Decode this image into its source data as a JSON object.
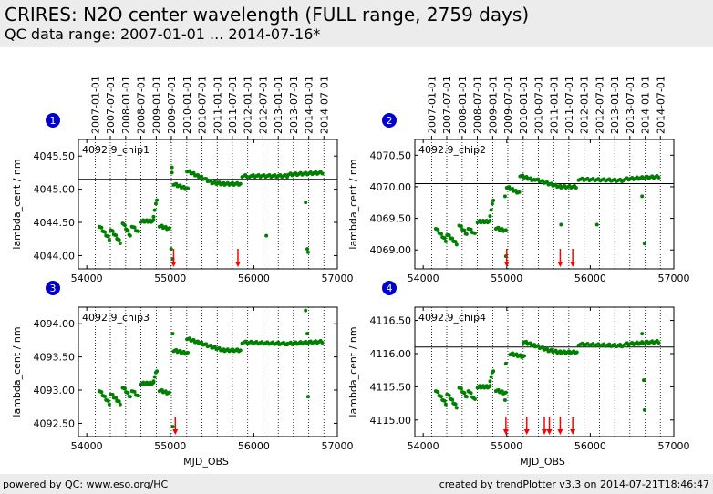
{
  "header": {
    "title": "CRIRES: N2O center wavelength (FULL range, 2759 days)",
    "subtitle": "QC data range: 2007-01-01 ... 2014-07-16*"
  },
  "footer": {
    "left": "powered by QC: www.eso.org/HC",
    "right": "created by trendPlotter v3.3 on 2014-07-21T18:46:47"
  },
  "colors": {
    "data": "#008000",
    "marker": "#ff0000",
    "badge": "#0000cc",
    "reference": "#000000"
  },
  "chart_data": [
    {
      "type": "scatter",
      "badge": "1",
      "label": "4092.9_chip1",
      "xlabel": "MJD_OBS",
      "ylabel": "lambda_cent / nm",
      "xlim": [
        53900,
        57000
      ],
      "ylim": [
        4043.8,
        4045.75
      ],
      "xticks": [
        54000,
        55000,
        56000,
        57000
      ],
      "yticks": [
        4044.0,
        4044.5,
        4045.0,
        4045.5
      ],
      "ytick_labels": [
        "4044.00",
        "4044.50",
        "4045.00",
        "4045.50"
      ],
      "reference_y": 4045.15,
      "event_markers": [
        55040,
        55810
      ],
      "top_axis_dates": [
        "2007-01-01",
        "2007-07-01",
        "2008-01-01",
        "2008-07-01",
        "2009-01-01",
        "2009-07-01",
        "2010-01-01",
        "2010-07-01",
        "2011-01-01",
        "2011-07-01",
        "2012-01-01",
        "2012-07-01",
        "2013-01-01",
        "2013-07-01",
        "2014-01-01",
        "2014-07-01"
      ],
      "date_mjd": [
        54101,
        54282,
        54466,
        54648,
        54832,
        55013,
        55197,
        55378,
        55562,
        55743,
        55927,
        56109,
        56293,
        56474,
        56658,
        56839
      ],
      "segments": [
        {
          "x0": 54150,
          "x1": 54270,
          "y0": 4044.45,
          "y1": 4044.25,
          "n": 10
        },
        {
          "x0": 54285,
          "x1": 54400,
          "y0": 4044.4,
          "y1": 4044.2,
          "n": 10
        },
        {
          "x0": 54430,
          "x1": 54520,
          "y0": 4044.5,
          "y1": 4044.3,
          "n": 8
        },
        {
          "x0": 54540,
          "x1": 54620,
          "y0": 4044.45,
          "y1": 4044.35,
          "n": 6
        },
        {
          "x0": 54650,
          "x1": 54800,
          "y0": 4044.52,
          "y1": 4044.52,
          "n": 12
        },
        {
          "x0": 54800,
          "x1": 54840,
          "y0": 4044.6,
          "y1": 4044.85,
          "n": 4
        },
        {
          "x0": 54870,
          "x1": 54990,
          "y0": 4044.45,
          "y1": 4044.4,
          "n": 9
        },
        {
          "x0": 55040,
          "x1": 55210,
          "y0": 4045.08,
          "y1": 4045.0,
          "n": 12
        },
        {
          "x0": 55200,
          "x1": 55330,
          "y0": 4045.28,
          "y1": 4045.2,
          "n": 9
        },
        {
          "x0": 55340,
          "x1": 55500,
          "y0": 4045.2,
          "y1": 4045.1,
          "n": 10
        },
        {
          "x0": 55500,
          "x1": 55640,
          "y0": 4045.1,
          "y1": 4045.08,
          "n": 9
        },
        {
          "x0": 55650,
          "x1": 55840,
          "y0": 4045.08,
          "y1": 4045.08,
          "n": 11
        },
        {
          "x0": 55860,
          "x1": 55920,
          "y0": 4045.2,
          "y1": 4045.2,
          "n": 4
        },
        {
          "x0": 55950,
          "x1": 56400,
          "y0": 4045.2,
          "y1": 4045.2,
          "n": 22
        },
        {
          "x0": 56400,
          "x1": 56820,
          "y0": 4045.22,
          "y1": 4045.25,
          "n": 22
        }
      ],
      "extra_points": [
        [
          55020,
          4045.33
        ],
        [
          55020,
          4045.25
        ],
        [
          55030,
          4043.95
        ],
        [
          55010,
          4044.1
        ],
        [
          56150,
          4044.3
        ],
        [
          56620,
          4044.8
        ],
        [
          56640,
          4044.1
        ],
        [
          56650,
          4044.05
        ]
      ]
    },
    {
      "type": "scatter",
      "badge": "2",
      "label": "4092.9_chip2",
      "xlabel": "MJD_OBS",
      "ylabel": "lambda_cent / nm",
      "xlim": [
        53900,
        57000
      ],
      "ylim": [
        4068.7,
        4070.75
      ],
      "xticks": [
        54000,
        55000,
        56000,
        57000
      ],
      "yticks": [
        4069.0,
        4069.5,
        4070.0,
        4070.5
      ],
      "ytick_labels": [
        "4069.00",
        "4069.50",
        "4070.00",
        "4070.50"
      ],
      "reference_y": 4070.05,
      "event_markers": [
        55000,
        55640,
        55790
      ],
      "top_axis_dates": [
        "2007-01-01",
        "2007-07-01",
        "2008-01-01",
        "2008-07-01",
        "2009-01-01",
        "2009-07-01",
        "2010-01-01",
        "2010-07-01",
        "2011-01-01",
        "2011-07-01",
        "2012-01-01",
        "2012-07-01",
        "2013-01-01",
        "2013-07-01",
        "2014-01-01",
        "2014-07-01"
      ],
      "date_mjd": [
        54101,
        54282,
        54466,
        54648,
        54832,
        55013,
        55197,
        55378,
        55562,
        55743,
        55927,
        56109,
        56293,
        56474,
        56658,
        56839
      ],
      "segments": [
        {
          "x0": 54150,
          "x1": 54270,
          "y0": 4069.35,
          "y1": 4069.15,
          "n": 10
        },
        {
          "x0": 54285,
          "x1": 54400,
          "y0": 4069.25,
          "y1": 4069.1,
          "n": 10
        },
        {
          "x0": 54430,
          "x1": 54520,
          "y0": 4069.4,
          "y1": 4069.25,
          "n": 8
        },
        {
          "x0": 54540,
          "x1": 54620,
          "y0": 4069.35,
          "y1": 4069.25,
          "n": 6
        },
        {
          "x0": 54650,
          "x1": 54800,
          "y0": 4069.45,
          "y1": 4069.45,
          "n": 12
        },
        {
          "x0": 54800,
          "x1": 54840,
          "y0": 4069.55,
          "y1": 4069.8,
          "n": 4
        },
        {
          "x0": 54870,
          "x1": 54990,
          "y0": 4069.35,
          "y1": 4069.3,
          "n": 9
        },
        {
          "x0": 55000,
          "x1": 55150,
          "y0": 4070.0,
          "y1": 4069.9,
          "n": 12
        },
        {
          "x0": 55160,
          "x1": 55330,
          "y0": 4070.18,
          "y1": 4070.1,
          "n": 12
        },
        {
          "x0": 55340,
          "x1": 55500,
          "y0": 4070.12,
          "y1": 4070.05,
          "n": 10
        },
        {
          "x0": 55500,
          "x1": 55640,
          "y0": 4070.05,
          "y1": 4070.0,
          "n": 9
        },
        {
          "x0": 55650,
          "x1": 55830,
          "y0": 4070.0,
          "y1": 4070.0,
          "n": 10
        },
        {
          "x0": 55860,
          "x1": 56400,
          "y0": 4070.12,
          "y1": 4070.1,
          "n": 26
        },
        {
          "x0": 56400,
          "x1": 56820,
          "y0": 4070.12,
          "y1": 4070.16,
          "n": 22
        }
      ],
      "extra_points": [
        [
          54980,
          4069.85
        ],
        [
          54990,
          4068.9
        ],
        [
          55650,
          4069.4
        ],
        [
          56080,
          4069.4
        ],
        [
          56620,
          4069.85
        ],
        [
          56650,
          4069.1
        ]
      ]
    },
    {
      "type": "scatter",
      "badge": "3",
      "label": "4092.9_chip3",
      "xlabel": "MJD_OBS",
      "ylabel": "lambda_cent / nm",
      "xlim": [
        53900,
        57000
      ],
      "ylim": [
        4092.3,
        4094.25
      ],
      "xticks": [
        54000,
        55000,
        56000,
        57000
      ],
      "yticks": [
        4092.5,
        4093.0,
        4093.5,
        4094.0
      ],
      "ytick_labels": [
        "4092.50",
        "4093.00",
        "4093.50",
        "4094.00"
      ],
      "reference_y": 4093.68,
      "event_markers": [
        55060
      ],
      "top_axis_dates": [],
      "date_mjd": [
        54101,
        54282,
        54466,
        54648,
        54832,
        55013,
        55197,
        55378,
        55562,
        55743,
        55927,
        56109,
        56293,
        56474,
        56658,
        56839
      ],
      "segments": [
        {
          "x0": 54150,
          "x1": 54270,
          "y0": 4093.0,
          "y1": 4092.8,
          "n": 10
        },
        {
          "x0": 54285,
          "x1": 54400,
          "y0": 4092.95,
          "y1": 4092.8,
          "n": 10
        },
        {
          "x0": 54430,
          "x1": 54520,
          "y0": 4093.05,
          "y1": 4092.9,
          "n": 8
        },
        {
          "x0": 54540,
          "x1": 54620,
          "y0": 4093.0,
          "y1": 4092.9,
          "n": 6
        },
        {
          "x0": 54650,
          "x1": 54800,
          "y0": 4093.1,
          "y1": 4093.1,
          "n": 12
        },
        {
          "x0": 54800,
          "x1": 54840,
          "y0": 4093.15,
          "y1": 4093.3,
          "n": 4
        },
        {
          "x0": 54870,
          "x1": 54990,
          "y0": 4093.0,
          "y1": 4092.95,
          "n": 9
        },
        {
          "x0": 55040,
          "x1": 55210,
          "y0": 4093.6,
          "y1": 4093.55,
          "n": 12
        },
        {
          "x0": 55200,
          "x1": 55330,
          "y0": 4093.78,
          "y1": 4093.72,
          "n": 9
        },
        {
          "x0": 55340,
          "x1": 55500,
          "y0": 4093.72,
          "y1": 4093.65,
          "n": 10
        },
        {
          "x0": 55500,
          "x1": 55640,
          "y0": 4093.65,
          "y1": 4093.6,
          "n": 9
        },
        {
          "x0": 55650,
          "x1": 55840,
          "y0": 4093.6,
          "y1": 4093.6,
          "n": 11
        },
        {
          "x0": 55860,
          "x1": 56400,
          "y0": 4093.72,
          "y1": 4093.7,
          "n": 26
        },
        {
          "x0": 56400,
          "x1": 56820,
          "y0": 4093.7,
          "y1": 4093.73,
          "n": 22
        }
      ],
      "extra_points": [
        [
          55030,
          4093.85
        ],
        [
          55030,
          4092.45
        ],
        [
          56620,
          4094.2
        ],
        [
          56640,
          4093.85
        ],
        [
          56650,
          4092.9
        ]
      ]
    },
    {
      "type": "scatter",
      "badge": "4",
      "label": "4092.9_chip4",
      "xlabel": "MJD_OBS",
      "ylabel": "lambda_cent / nm",
      "xlim": [
        53900,
        57000
      ],
      "ylim": [
        4114.75,
        4116.7
      ],
      "xticks": [
        54000,
        55000,
        56000,
        57000
      ],
      "yticks": [
        4115.0,
        4115.5,
        4116.0,
        4116.5
      ],
      "ytick_labels": [
        "4115.00",
        "4115.50",
        "4116.00",
        "4116.50"
      ],
      "reference_y": 4116.1,
      "event_markers": [
        54990,
        55240,
        55450,
        55510,
        55640,
        55790
      ],
      "top_axis_dates": [],
      "date_mjd": [
        54101,
        54282,
        54466,
        54648,
        54832,
        55013,
        55197,
        55378,
        55562,
        55743,
        55927,
        56109,
        56293,
        56474,
        56658,
        56839
      ],
      "segments": [
        {
          "x0": 54150,
          "x1": 54270,
          "y0": 4115.45,
          "y1": 4115.25,
          "n": 10
        },
        {
          "x0": 54285,
          "x1": 54400,
          "y0": 4115.4,
          "y1": 4115.2,
          "n": 10
        },
        {
          "x0": 54430,
          "x1": 54520,
          "y0": 4115.5,
          "y1": 4115.35,
          "n": 8
        },
        {
          "x0": 54540,
          "x1": 54620,
          "y0": 4115.45,
          "y1": 4115.3,
          "n": 6
        },
        {
          "x0": 54650,
          "x1": 54800,
          "y0": 4115.5,
          "y1": 4115.5,
          "n": 12
        },
        {
          "x0": 54800,
          "x1": 54840,
          "y0": 4115.6,
          "y1": 4115.75,
          "n": 4
        },
        {
          "x0": 54870,
          "x1": 54990,
          "y0": 4115.45,
          "y1": 4115.4,
          "n": 9
        },
        {
          "x0": 55040,
          "x1": 55210,
          "y0": 4116.0,
          "y1": 4115.95,
          "n": 12
        },
        {
          "x0": 55200,
          "x1": 55330,
          "y0": 4116.18,
          "y1": 4116.12,
          "n": 9
        },
        {
          "x0": 55340,
          "x1": 55500,
          "y0": 4116.12,
          "y1": 4116.05,
          "n": 10
        },
        {
          "x0": 55500,
          "x1": 55640,
          "y0": 4116.05,
          "y1": 4116.02,
          "n": 9
        },
        {
          "x0": 55650,
          "x1": 55840,
          "y0": 4116.02,
          "y1": 4116.02,
          "n": 11
        },
        {
          "x0": 55860,
          "x1": 56400,
          "y0": 4116.14,
          "y1": 4116.12,
          "n": 26
        },
        {
          "x0": 56400,
          "x1": 56820,
          "y0": 4116.14,
          "y1": 4116.18,
          "n": 22
        }
      ],
      "extra_points": [
        [
          54990,
          4115.85
        ],
        [
          54980,
          4115.3
        ],
        [
          56620,
          4116.3
        ],
        [
          56640,
          4115.6
        ],
        [
          56650,
          4115.15
        ]
      ]
    }
  ]
}
